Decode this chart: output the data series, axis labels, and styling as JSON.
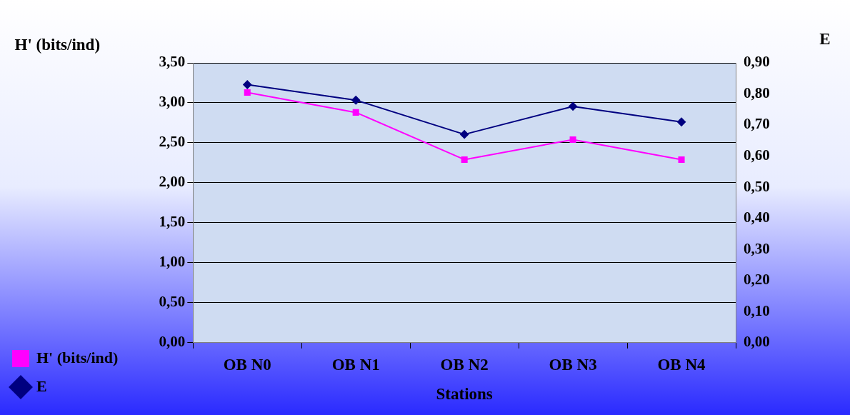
{
  "chart_data": {
    "type": "line",
    "xlabel": "Stations",
    "ylabel": "H' (bits/ind)",
    "y2label": "E",
    "categories": [
      "OB N0",
      "OB N1",
      "OB N2",
      "OB N3",
      "OB N4"
    ],
    "series": [
      {
        "name": "H' (bits/ind)",
        "color": "#ff00ff",
        "marker": "square",
        "values": [
          3.13,
          2.88,
          2.29,
          2.54,
          2.29
        ]
      },
      {
        "name": "E",
        "color": "#000080",
        "marker": "diamond",
        "axis": "y2",
        "values": [
          0.83,
          0.78,
          0.67,
          0.76,
          0.71
        ]
      }
    ],
    "ylim": [
      0,
      3.5
    ],
    "yticks": [
      {
        "value": 0,
        "label": "0,00"
      },
      {
        "value": 0.5,
        "label": "0,50"
      },
      {
        "value": 1,
        "label": "1,00"
      },
      {
        "value": 1.5,
        "label": "1,50"
      },
      {
        "value": 2,
        "label": "2,00"
      },
      {
        "value": 2.5,
        "label": "2,50"
      },
      {
        "value": 3,
        "label": "3,00"
      },
      {
        "value": 3.5,
        "label": "3,50"
      }
    ],
    "y2lim": [
      0,
      0.9
    ],
    "y2ticks": [
      {
        "value": 0,
        "label": "0,00"
      },
      {
        "value": 0.1,
        "label": "0,10"
      },
      {
        "value": 0.2,
        "label": "0,20"
      },
      {
        "value": 0.3,
        "label": "0,30"
      },
      {
        "value": 0.4,
        "label": "0,40"
      },
      {
        "value": 0.5,
        "label": "0,50"
      },
      {
        "value": 0.6,
        "label": "0,60"
      },
      {
        "value": 0.7,
        "label": "0,70"
      },
      {
        "value": 0.8,
        "label": "0,80"
      },
      {
        "value": 0.9,
        "label": "0,90"
      }
    ],
    "grid": "y",
    "legend": "bottom left"
  }
}
